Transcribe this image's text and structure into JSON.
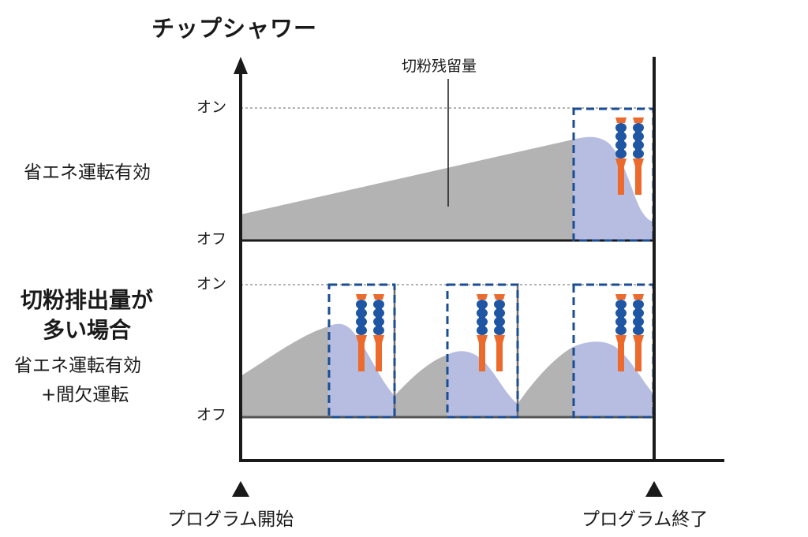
{
  "title": "チップシャワー",
  "annotation": "切粉残留量",
  "axis": {
    "on": "オン",
    "off": "オフ"
  },
  "panel_top": {
    "label": "省エネ運転有効"
  },
  "panel_bottom": {
    "heading_line1": "切粉排出量が",
    "heading_line2": "多い場合",
    "label_line1": "省エネ運転有効",
    "label_line2": "+間欠運転"
  },
  "footer": {
    "start": "プログラム開始",
    "end": "プログラム終了"
  },
  "colors": {
    "residue_gray": "#b3b3b3",
    "shower_blue": "#b7bde0",
    "box_dash": "#1a4d94",
    "nozzle_blue": "#1f56a3",
    "nozzle_orange": "#ec6a2c"
  }
}
